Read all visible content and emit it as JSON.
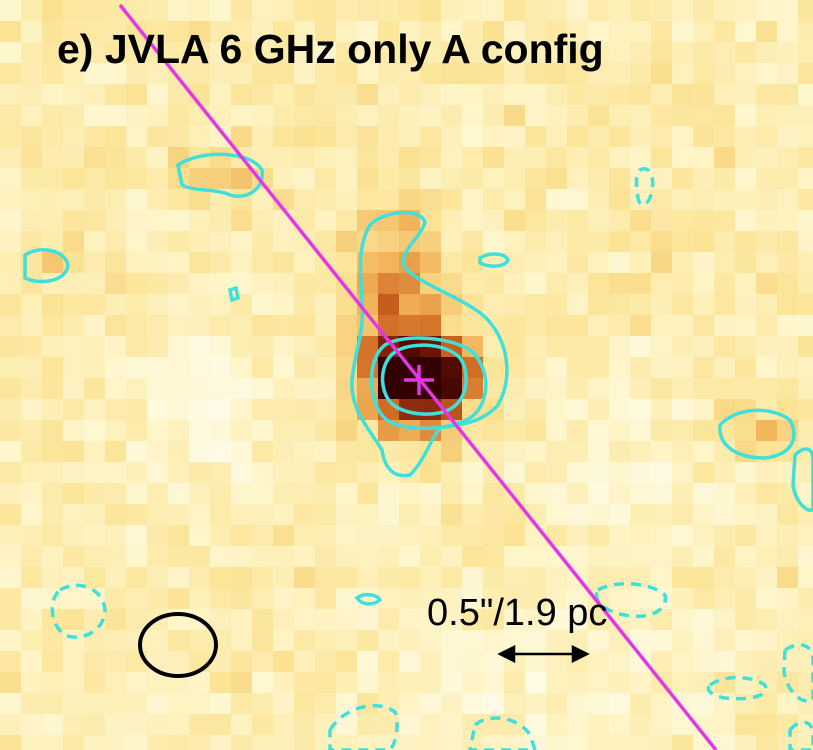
{
  "panel": {
    "title": "e) JVLA 6 GHz only A config",
    "scale_bar_label": "0.5\"/1.9 pc"
  }
}
